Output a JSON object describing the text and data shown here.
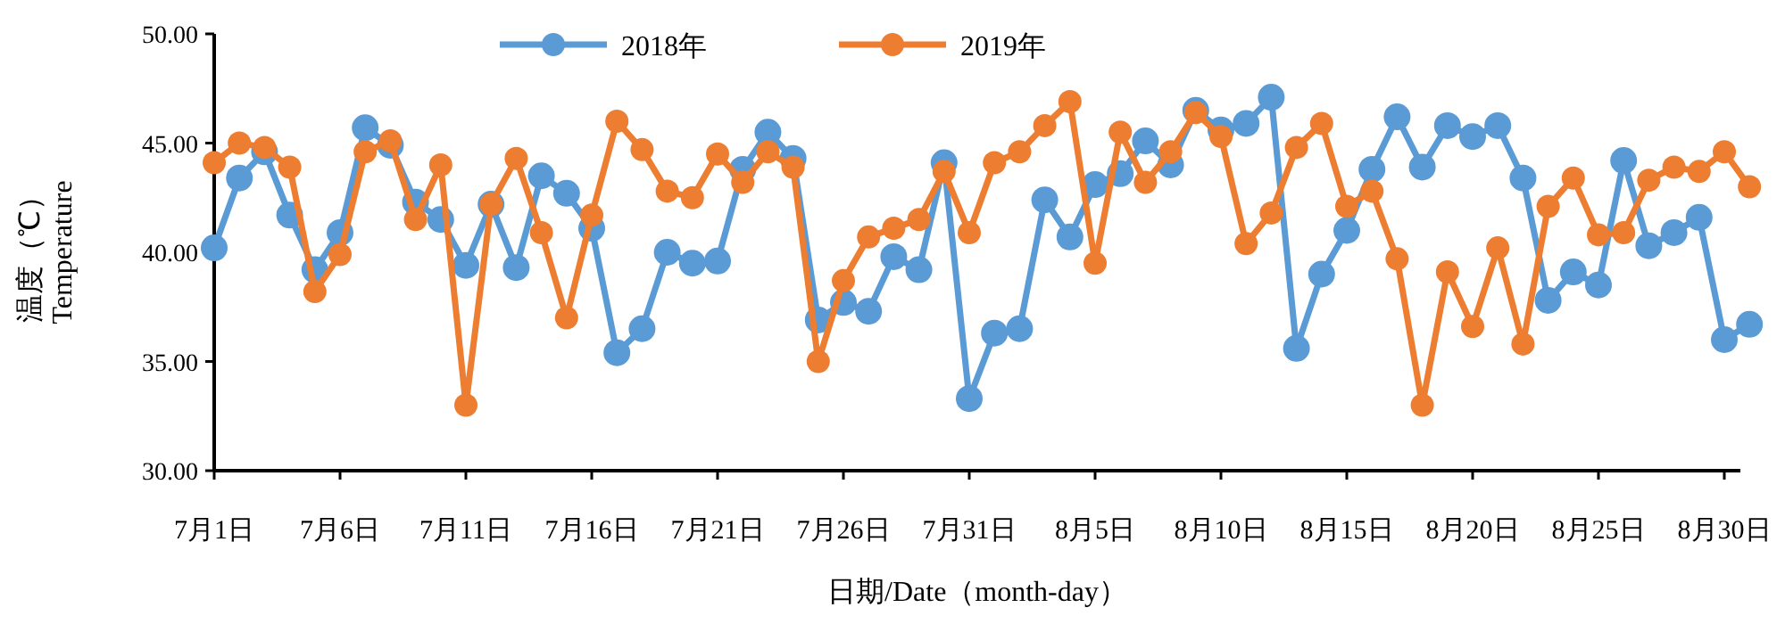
{
  "chart_data": {
    "type": "line",
    "xlabel": "日期/Date（month-day）",
    "ylabel": "温度（℃）\nTemperature",
    "categories": [
      "7月1日",
      null,
      null,
      null,
      null,
      "7月6日",
      null,
      null,
      null,
      null,
      "7月11日",
      null,
      null,
      null,
      null,
      "7月16日",
      null,
      null,
      null,
      null,
      "7月21日",
      null,
      null,
      null,
      null,
      "7月26日",
      null,
      null,
      null,
      null,
      "7月31日",
      null,
      null,
      null,
      null,
      "8月5日",
      null,
      null,
      null,
      null,
      "8月10日",
      null,
      null,
      null,
      null,
      "8月15日",
      null,
      null,
      null,
      null,
      "8月20日",
      null,
      null,
      null,
      null,
      "8月25日",
      null,
      null,
      null,
      null,
      "8月30日",
      null
    ],
    "ylim": [
      30,
      50
    ],
    "yticks": [
      {
        "value": 30,
        "label": "30.00"
      },
      {
        "value": 35,
        "label": "35.00"
      },
      {
        "value": 40,
        "label": "40.00"
      },
      {
        "value": 45,
        "label": "45.00"
      },
      {
        "value": 50,
        "label": "50.00"
      }
    ],
    "grid": false,
    "legend": "top",
    "marker": "circle",
    "line_style": "solid",
    "series": [
      {
        "name": "2018年",
        "color": "#5b9bd5",
        "values": [
          40.2,
          43.4,
          44.6,
          41.7,
          39.2,
          40.9,
          45.7,
          44.9,
          42.3,
          41.5,
          39.4,
          42.2,
          39.3,
          43.5,
          42.7,
          41.1,
          35.4,
          36.5,
          40.0,
          39.5,
          39.6,
          43.8,
          45.5,
          44.3,
          36.9,
          37.7,
          37.3,
          39.8,
          39.2,
          44.1,
          33.3,
          36.3,
          36.5,
          42.4,
          40.7,
          43.1,
          43.6,
          45.1,
          44.0,
          46.5,
          45.6,
          45.9,
          47.1,
          35.6,
          39.0,
          41.0,
          43.8,
          46.2,
          43.9,
          45.8,
          45.3,
          45.8,
          43.4,
          37.8,
          39.1,
          38.5,
          44.2,
          40.3,
          40.9,
          41.6,
          36.0,
          36.7
        ]
      },
      {
        "name": "2019年",
        "color": "#ed7d31",
        "values": [
          44.1,
          45.0,
          44.8,
          43.9,
          38.2,
          39.9,
          44.6,
          45.1,
          41.5,
          44.0,
          33.0,
          42.2,
          44.3,
          40.9,
          37.0,
          41.7,
          46.0,
          44.7,
          42.8,
          42.5,
          44.5,
          43.2,
          44.6,
          43.9,
          35.0,
          38.7,
          40.7,
          41.1,
          41.5,
          43.7,
          40.9,
          44.1,
          44.6,
          45.8,
          46.9,
          39.5,
          45.5,
          43.2,
          44.6,
          46.4,
          45.3,
          40.4,
          41.8,
          44.8,
          45.9,
          42.1,
          42.8,
          39.7,
          33.0,
          39.1,
          36.6,
          40.2,
          35.8,
          42.1,
          43.4,
          40.8,
          40.9,
          43.3,
          43.9,
          43.7,
          44.6,
          43.0
        ]
      }
    ]
  }
}
